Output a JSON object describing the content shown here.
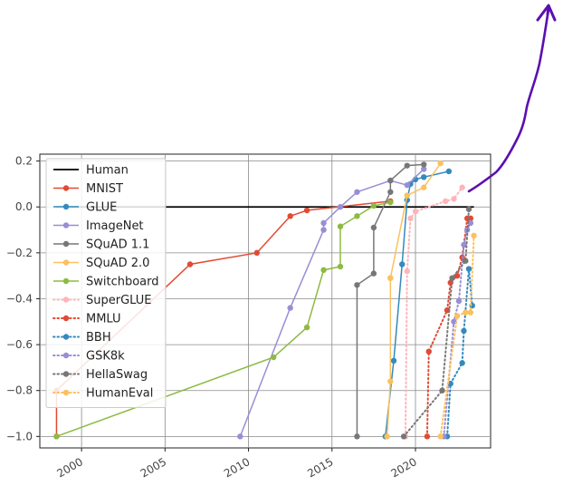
{
  "chart_data": {
    "type": "line",
    "title": "",
    "xlabel": "",
    "ylabel": "",
    "xlim": [
      1997.5,
      2024.5
    ],
    "ylim": [
      -1.05,
      0.23
    ],
    "grid": true,
    "legend_position": "upper-left",
    "x_ticks": [
      2000,
      2005,
      2010,
      2015,
      2020
    ],
    "x_tick_labels": [
      "2000",
      "2005",
      "2010",
      "2015",
      "2020"
    ],
    "y_ticks": [
      0.2,
      0.0,
      -0.2,
      -0.4,
      -0.6,
      -0.8,
      -1.0
    ],
    "y_tick_labels": [
      "0.2",
      "0.0",
      "−0.2",
      "−0.4",
      "−0.6",
      "−0.8",
      "−1.0"
    ],
    "annotation": {
      "type": "hand-drawn arrow",
      "color": "#5b0fb0"
    },
    "series": [
      {
        "name": "Human",
        "color": "#000000",
        "dashed": false,
        "marker": false,
        "x": [
          1998.5,
          2023.5
        ],
        "y": [
          0.0,
          0.0
        ]
      },
      {
        "name": "MNIST",
        "color": "#e24a33",
        "dashed": false,
        "marker": true,
        "x": [
          1998.5,
          1998.5,
          2006.5,
          2010.5,
          2012.5,
          2013.5,
          2018.5
        ],
        "y": [
          -1.0,
          -0.8,
          -0.25,
          -0.2,
          -0.04,
          -0.015,
          0.025
        ]
      },
      {
        "name": "GLUE",
        "color": "#348abd",
        "dashed": false,
        "marker": true,
        "x": [
          2018.2,
          2018.7,
          2019.2,
          2019.5,
          2019.7,
          2020.0,
          2020.5,
          2022.0
        ],
        "y": [
          -1.0,
          -0.67,
          -0.25,
          0.03,
          0.1,
          0.12,
          0.13,
          0.155
        ]
      },
      {
        "name": "ImageNet",
        "color": "#988ed5",
        "dashed": false,
        "marker": true,
        "x": [
          2009.5,
          2012.5,
          2014.5,
          2014.5,
          2015.5,
          2016.5,
          2018.5,
          2019.5,
          2020.5
        ],
        "y": [
          -1.0,
          -0.44,
          -0.1,
          -0.07,
          0.0,
          0.065,
          0.115,
          0.095,
          0.165
        ]
      },
      {
        "name": "SQuAD 1.1",
        "color": "#777777",
        "dashed": false,
        "marker": true,
        "x": [
          2016.5,
          2016.5,
          2017.5,
          2017.5,
          2018.5,
          2018.5,
          2019.5,
          2020.5
        ],
        "y": [
          -1.0,
          -0.34,
          -0.29,
          -0.09,
          0.065,
          0.115,
          0.18,
          0.185
        ]
      },
      {
        "name": "SQuAD 2.0",
        "color": "#fbc15e",
        "dashed": false,
        "marker": true,
        "x": [
          2018.3,
          2018.5,
          2018.5,
          2018.5,
          2019.5,
          2020.5,
          2021.5
        ],
        "y": [
          -1.0,
          -0.76,
          -0.31,
          -0.31,
          0.05,
          0.085,
          0.19
        ]
      },
      {
        "name": "Switchboard",
        "color": "#8eba42",
        "dashed": false,
        "marker": true,
        "x": [
          1998.5,
          2011.5,
          2013.5,
          2014.5,
          2015.5,
          2015.5,
          2016.5,
          2017.5,
          2018.5
        ],
        "y": [
          -1.0,
          -0.655,
          -0.525,
          -0.275,
          -0.26,
          -0.085,
          -0.04,
          0.005,
          0.02
        ]
      },
      {
        "name": "SuperGLUE",
        "color": "#ffb5b8",
        "dashed": true,
        "marker": true,
        "x": [
          2019.4,
          2019.5,
          2019.7,
          2020.0,
          2021.8,
          2022.3,
          2022.8
        ],
        "y": [
          -1.0,
          -0.28,
          -0.05,
          -0.02,
          0.025,
          0.035,
          0.085
        ]
      },
      {
        "name": "MMLU",
        "color": "#e24a33",
        "dashed": true,
        "marker": true,
        "x": [
          2020.7,
          2020.8,
          2021.9,
          2022.1,
          2022.5,
          2022.8,
          2023.1,
          2023.3
        ],
        "y": [
          -1.0,
          -0.63,
          -0.45,
          -0.33,
          -0.3,
          -0.22,
          -0.05,
          -0.05
        ]
      },
      {
        "name": "BBH",
        "color": "#348abd",
        "dashed": true,
        "marker": true,
        "x": [
          2021.9,
          2022.1,
          2022.8,
          2022.9,
          2023.2,
          2023.4
        ],
        "y": [
          -1.0,
          -0.77,
          -0.68,
          -0.54,
          -0.27,
          -0.43
        ]
      },
      {
        "name": "GSK8k",
        "color": "#988ed5",
        "dashed": true,
        "marker": true,
        "x": [
          2021.7,
          2022.3,
          2022.6,
          2022.9,
          2023.1,
          2023.3
        ],
        "y": [
          -1.0,
          -0.5,
          -0.41,
          -0.165,
          -0.1,
          -0.07
        ]
      },
      {
        "name": "HellaSwag",
        "color": "#777777",
        "dashed": true,
        "marker": true,
        "x": [
          2019.3,
          2021.6,
          2022.2,
          2023.0,
          2023.2
        ],
        "y": [
          -1.0,
          -0.8,
          -0.31,
          -0.235,
          -0.01
        ]
      },
      {
        "name": "HumanEval",
        "color": "#fbc15e",
        "dashed": true,
        "marker": true,
        "x": [
          2021.5,
          2022.5,
          2023.0,
          2023.3,
          2023.5
        ],
        "y": [
          -1.0,
          -0.475,
          -0.46,
          -0.46,
          -0.125
        ]
      }
    ]
  }
}
